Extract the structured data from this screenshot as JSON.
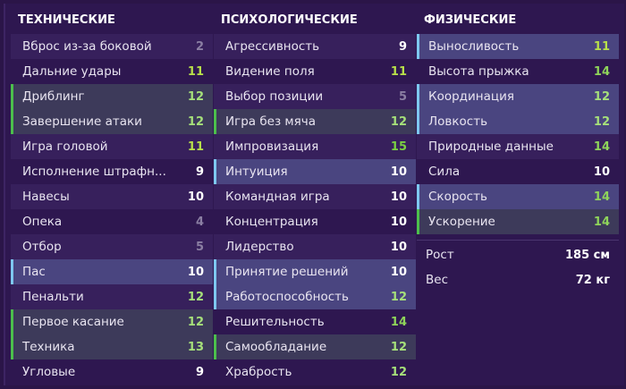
{
  "columns": [
    {
      "title": "ТЕХНИЧЕСКИЕ",
      "items": [
        {
          "label": "Вброс из-за боковой",
          "value": "2",
          "hl": ""
        },
        {
          "label": "Дальние удары",
          "value": "11",
          "hl": ""
        },
        {
          "label": "Дриблинг",
          "value": "12",
          "hl": "green"
        },
        {
          "label": "Завершение атаки",
          "value": "12",
          "hl": "green"
        },
        {
          "label": "Игра головой",
          "value": "11",
          "hl": ""
        },
        {
          "label": "Исполнение штрафн...",
          "value": "9",
          "hl": ""
        },
        {
          "label": "Навесы",
          "value": "10",
          "hl": ""
        },
        {
          "label": "Опека",
          "value": "4",
          "hl": ""
        },
        {
          "label": "Отбор",
          "value": "5",
          "hl": ""
        },
        {
          "label": "Пас",
          "value": "10",
          "hl": "blue"
        },
        {
          "label": "Пенальти",
          "value": "12",
          "hl": ""
        },
        {
          "label": "Первое касание",
          "value": "12",
          "hl": "green"
        },
        {
          "label": "Техника",
          "value": "13",
          "hl": "green"
        },
        {
          "label": "Угловые",
          "value": "9",
          "hl": ""
        }
      ]
    },
    {
      "title": "ПСИХОЛОГИЧЕСКИЕ",
      "items": [
        {
          "label": "Агрессивность",
          "value": "9",
          "hl": ""
        },
        {
          "label": "Видение поля",
          "value": "11",
          "hl": ""
        },
        {
          "label": "Выбор позиции",
          "value": "5",
          "hl": ""
        },
        {
          "label": "Игра без мяча",
          "value": "12",
          "hl": "green"
        },
        {
          "label": "Импровизация",
          "value": "15",
          "hl": ""
        },
        {
          "label": "Интуиция",
          "value": "10",
          "hl": "blue"
        },
        {
          "label": "Командная игра",
          "value": "10",
          "hl": ""
        },
        {
          "label": "Концентрация",
          "value": "10",
          "hl": ""
        },
        {
          "label": "Лидерство",
          "value": "10",
          "hl": ""
        },
        {
          "label": "Принятие решений",
          "value": "10",
          "hl": "blue"
        },
        {
          "label": "Работоспособность",
          "value": "12",
          "hl": "blue"
        },
        {
          "label": "Решительность",
          "value": "14",
          "hl": ""
        },
        {
          "label": "Самообладание",
          "value": "12",
          "hl": "green"
        },
        {
          "label": "Храбрость",
          "value": "12",
          "hl": ""
        }
      ]
    },
    {
      "title": "ФИЗИЧЕСКИЕ",
      "items": [
        {
          "label": "Выносливость",
          "value": "11",
          "hl": "blue"
        },
        {
          "label": "Высота прыжка",
          "value": "14",
          "hl": ""
        },
        {
          "label": "Координация",
          "value": "12",
          "hl": "blue"
        },
        {
          "label": "Ловкость",
          "value": "12",
          "hl": "blue"
        },
        {
          "label": "Природные данные",
          "value": "14",
          "hl": ""
        },
        {
          "label": "Сила",
          "value": "10",
          "hl": ""
        },
        {
          "label": "Скорость",
          "value": "14",
          "hl": "blue"
        },
        {
          "label": "Ускорение",
          "value": "14",
          "hl": "green"
        }
      ]
    }
  ],
  "physical_info": [
    {
      "label": "Рост",
      "value": "185 см"
    },
    {
      "label": "Вес",
      "value": "72 кг"
    }
  ],
  "colors": {
    "highlight_blue": "#7ec8f0",
    "highlight_green": "#4cbf4c",
    "background": "#2e1750"
  }
}
